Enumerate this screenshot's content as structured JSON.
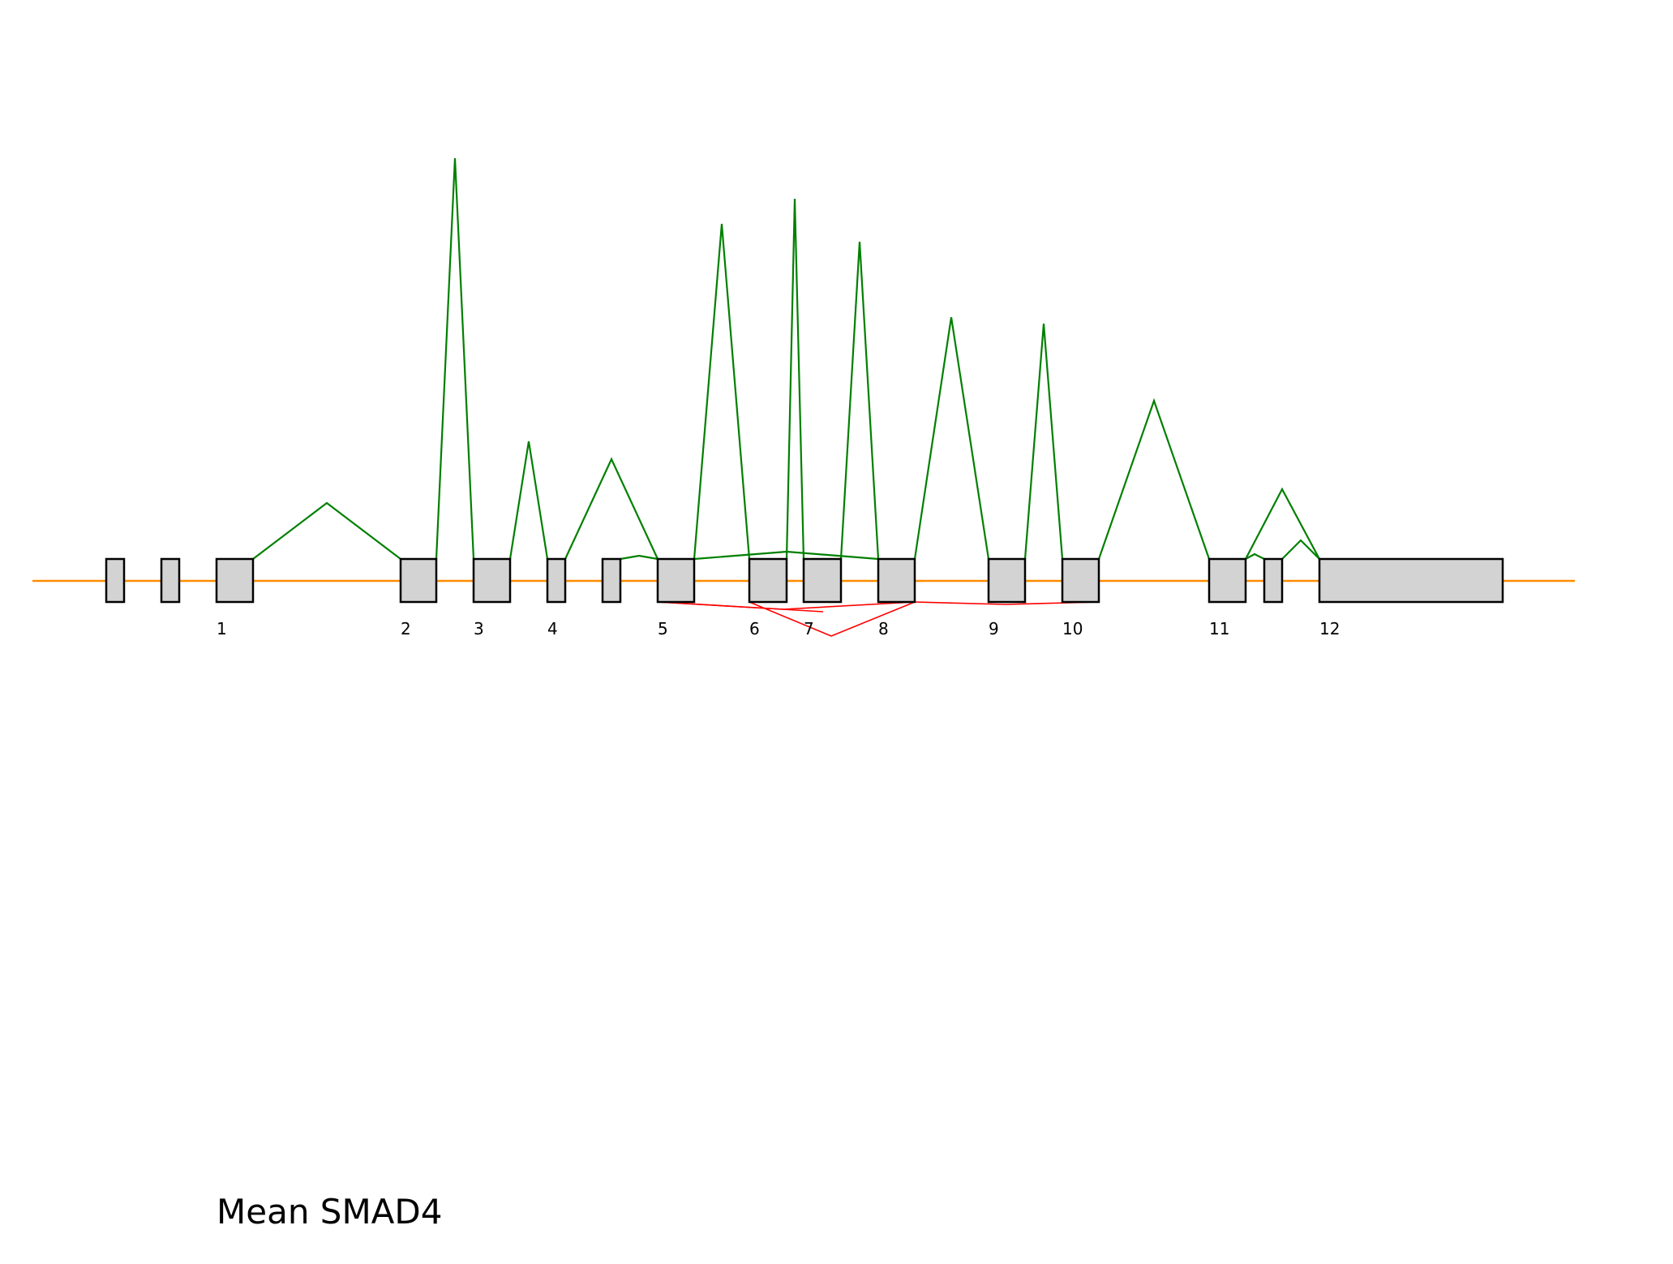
{
  "title": "Mean SMAD4",
  "exon_labels": [
    "1",
    "2",
    "3",
    "4",
    "5",
    "6",
    "7",
    "8",
    "9",
    "10",
    "11",
    "12"
  ],
  "colors": {
    "background": "#ffffff",
    "intron_line": "#ff8c00",
    "exon_fill": "#d3d3d3",
    "exon_stroke": "#000000",
    "junction_upper": "#008000",
    "junction_lower": "#ff0000"
  }
}
